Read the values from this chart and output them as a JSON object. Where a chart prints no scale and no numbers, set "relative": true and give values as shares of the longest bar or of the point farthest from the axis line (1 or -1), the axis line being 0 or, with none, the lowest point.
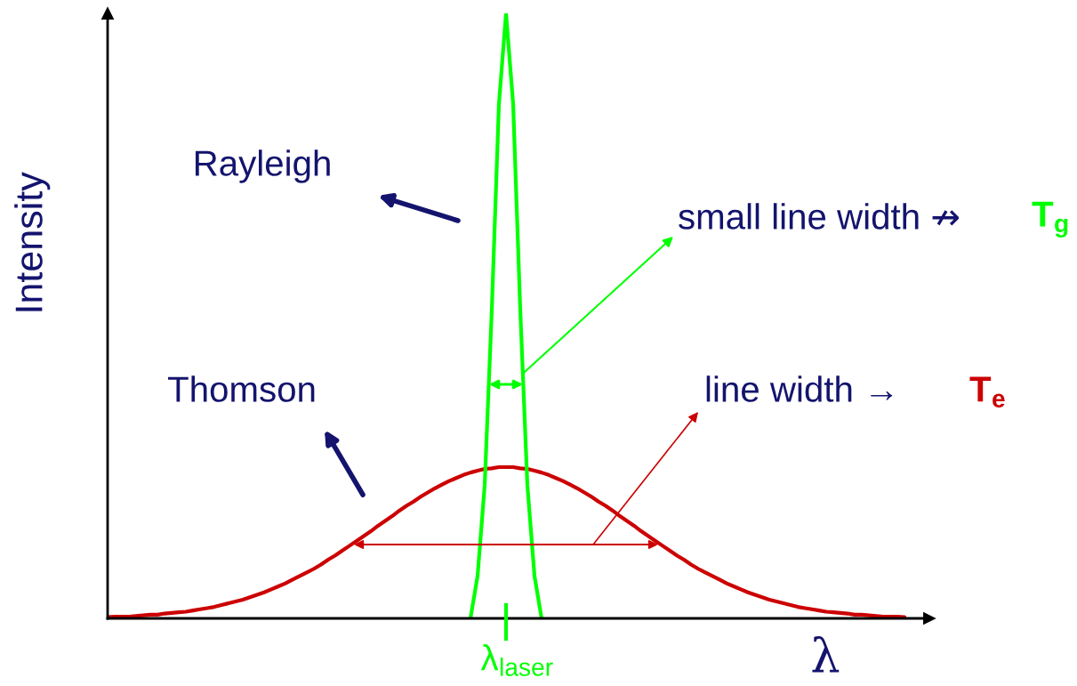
{
  "chart_data": {
    "type": "line",
    "relative": true,
    "xlabel": "λ",
    "ylabel": "Intensity",
    "annotations": [
      "Rayleigh",
      "Thomson",
      "small line width ↛",
      "T$_{g}$",
      "line width →",
      "T$_{e}$",
      "λ$_{laser}$"
    ],
    "categories": [
      null,
      null,
      null,
      null,
      null,
      null,
      null,
      null,
      null,
      null,
      null,
      null,
      null,
      null,
      null,
      null,
      null,
      null,
      null,
      null,
      null,
      null,
      null,
      null,
      null,
      null,
      null,
      null,
      null,
      null,
      null,
      null,
      null,
      null,
      null,
      null,
      null,
      null,
      null,
      null,
      null,
      null,
      null,
      null,
      null,
      null,
      null,
      null,
      null,
      null,
      null,
      null,
      null,
      null,
      null,
      null,
      null,
      null,
      null,
      null,
      null,
      null,
      null,
      null,
      null,
      null,
      null,
      null,
      null,
      null,
      null,
      null,
      null,
      null,
      null,
      null,
      null,
      null,
      null,
      null,
      null,
      null,
      null,
      null,
      null,
      null,
      null,
      null,
      null,
      null,
      null,
      null,
      null,
      null,
      null,
      null,
      null,
      null,
      null,
      null,
      null,
      null,
      null,
      null,
      null,
      null,
      null,
      null,
      null,
      null,
      null,
      null,
      null
    ],
    "series": [
      {
        "color": "#cc0000",
        "values": [
          0.002,
          0.003,
          0.003,
          0.003,
          0.004,
          0.005,
          0.006,
          0.006,
          0.008,
          0.009,
          0.01,
          0.011,
          0.013,
          0.015,
          0.017,
          0.019,
          0.022,
          0.025,
          0.028,
          0.031,
          0.035,
          0.039,
          0.043,
          0.048,
          0.053,
          0.058,
          0.064,
          0.07,
          0.076,
          0.082,
          0.089,
          0.097,
          0.104,
          0.112,
          0.12,
          0.128,
          0.136,
          0.144,
          0.153,
          0.161,
          0.169,
          0.178,
          0.186,
          0.193,
          0.201,
          0.208,
          0.215,
          0.221,
          0.227,
          0.232,
          0.237,
          0.241,
          0.244,
          0.247,
          0.248,
          0.25,
          0.25,
          0.25,
          0.248,
          0.247,
          0.244,
          0.241,
          0.237,
          0.232,
          0.227,
          0.221,
          0.215,
          0.208,
          0.201,
          0.193,
          0.186,
          0.178,
          0.169,
          0.161,
          0.153,
          0.144,
          0.136,
          0.128,
          0.12,
          0.112,
          0.104,
          0.097,
          0.089,
          0.082,
          0.076,
          0.07,
          0.064,
          0.058,
          0.053,
          0.048,
          0.043,
          0.039,
          0.035,
          0.031,
          0.028,
          0.025,
          0.022,
          0.019,
          0.017,
          0.015,
          0.013,
          0.011,
          0.01,
          0.009,
          0.008,
          0.006,
          0.006,
          0.005,
          0.004,
          0.003,
          0.003,
          0.003,
          0.002
        ]
      },
      {
        "color": "#00ff00",
        "values": [
          null,
          null,
          null,
          null,
          null,
          null,
          null,
          null,
          null,
          null,
          null,
          null,
          null,
          null,
          null,
          null,
          null,
          null,
          null,
          null,
          null,
          null,
          null,
          null,
          null,
          null,
          null,
          null,
          null,
          null,
          null,
          null,
          null,
          null,
          null,
          null,
          null,
          null,
          null,
          null,
          null,
          null,
          null,
          null,
          null,
          null,
          null,
          null,
          null,
          null,
          null,
          0,
          0.07,
          0.22,
          0.51,
          0.85,
          1,
          0.85,
          0.51,
          0.22,
          0.07,
          0,
          null,
          null,
          null,
          null,
          null,
          null,
          null,
          null,
          null,
          null,
          null,
          null,
          null,
          null,
          null,
          null,
          null,
          null,
          null,
          null,
          null,
          null,
          null,
          null,
          null,
          null,
          null,
          null,
          null,
          null,
          null,
          null,
          null,
          null,
          null,
          null,
          null,
          null,
          null,
          null,
          null,
          null,
          null,
          null,
          null,
          null,
          null,
          null,
          null,
          null,
          null
        ]
      }
    ]
  }
}
